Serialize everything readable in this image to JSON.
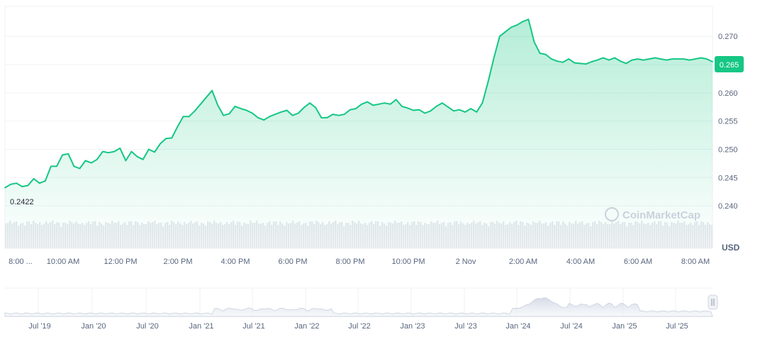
{
  "chart_data": {
    "type": "area",
    "currency_label": "USD",
    "watermark": "CoinMarketCap",
    "current_price": "0.265",
    "low_label": "0.2422",
    "ylim": [
      0.2375,
      0.2753
    ],
    "y_ticks": [
      "0.270",
      "0.265",
      "0.260",
      "0.255",
      "0.250",
      "0.245",
      "0.240"
    ],
    "x_ticks": [
      "8:00 ...",
      "10:00 AM",
      "12:00 PM",
      "2:00 PM",
      "4:00 PM",
      "6:00 PM",
      "8:00 PM",
      "10:00 PM",
      "2 Nov",
      "2:00 AM",
      "4:00 AM",
      "6:00 AM",
      "8:00 AM"
    ],
    "navigator_ticks": [
      "Jul '19",
      "Jan '20",
      "Jul '20",
      "Jan '21",
      "Jul '21",
      "Jan '22",
      "Jul '22",
      "Jan '23",
      "Jul '23",
      "Jan '24",
      "Jul '24",
      "Jan '25",
      "Jul '25"
    ],
    "series": [
      {
        "x": [
          0,
          0.2,
          0.4,
          0.6,
          0.8,
          1.0,
          1.2,
          1.4,
          1.6,
          1.8,
          2.0,
          2.2,
          2.4,
          2.6,
          2.8,
          3.0,
          3.2,
          3.4,
          3.6,
          3.8,
          4.0,
          4.2,
          4.4,
          4.6,
          4.8,
          5.0,
          5.2,
          5.4,
          5.6,
          5.8,
          6.0,
          6.2,
          6.4,
          6.6,
          6.8,
          7.0,
          7.2,
          7.4,
          7.6,
          7.8,
          8.0,
          8.2,
          8.4,
          8.6,
          8.8,
          9.0,
          9.2,
          9.4,
          9.6,
          9.8,
          10.0,
          10.2,
          10.4,
          10.6,
          10.8,
          11.0,
          11.2,
          11.4,
          11.6,
          11.8,
          12.0,
          12.2,
          12.4,
          12.6,
          12.8,
          13.0,
          13.2,
          13.4,
          13.6,
          13.8,
          14.0,
          14.2,
          14.4,
          14.6,
          14.8,
          15.0,
          15.2,
          15.4,
          15.6,
          15.8,
          16.0,
          16.2,
          16.4,
          16.6,
          16.8,
          17.0,
          17.2,
          17.4,
          17.6,
          17.8,
          18.0,
          18.2,
          18.4,
          18.6,
          18.8,
          19.0,
          19.2,
          19.4,
          19.6,
          19.8,
          20.0,
          20.2,
          20.4,
          20.6,
          20.8,
          21.0,
          21.2,
          21.4,
          21.6,
          21.8,
          22.0,
          22.2,
          22.4,
          22.6,
          22.8,
          23.0,
          23.2,
          23.4,
          23.6,
          23.8,
          24.0,
          24.2,
          24.4,
          24.6
        ],
        "values": [
          0.2432,
          0.2438,
          0.244,
          0.2434,
          0.2436,
          0.2448,
          0.244,
          0.2444,
          0.247,
          0.247,
          0.249,
          0.2492,
          0.247,
          0.2466,
          0.248,
          0.2476,
          0.2482,
          0.2496,
          0.2494,
          0.2496,
          0.2502,
          0.248,
          0.2496,
          0.2487,
          0.2482,
          0.25,
          0.2495,
          0.251,
          0.2519,
          0.252,
          0.254,
          0.2558,
          0.2558,
          0.2568,
          0.258,
          0.2592,
          0.2604,
          0.2578,
          0.256,
          0.2563,
          0.2576,
          0.2572,
          0.2569,
          0.2564,
          0.2556,
          0.2552,
          0.2558,
          0.2562,
          0.2566,
          0.2569,
          0.256,
          0.2564,
          0.2574,
          0.2582,
          0.2574,
          0.2556,
          0.2556,
          0.2562,
          0.256,
          0.2562,
          0.257,
          0.2572,
          0.258,
          0.2584,
          0.2578,
          0.258,
          0.2582,
          0.258,
          0.2588,
          0.2576,
          0.2573,
          0.2569,
          0.257,
          0.2564,
          0.2568,
          0.2576,
          0.2582,
          0.2575,
          0.2568,
          0.257,
          0.2566,
          0.2572,
          0.2566,
          0.2582,
          0.262,
          0.2662,
          0.27,
          0.2708,
          0.2716,
          0.272,
          0.2726,
          0.273,
          0.269,
          0.267,
          0.2668,
          0.266,
          0.2656,
          0.2654,
          0.266,
          0.2653,
          0.2652,
          0.2651,
          0.2655,
          0.2658,
          0.2662,
          0.2658,
          0.2662,
          0.2656,
          0.2652,
          0.2658,
          0.266,
          0.2658,
          0.266,
          0.2662,
          0.266,
          0.2658,
          0.266,
          0.266,
          0.266,
          0.2658,
          0.266,
          0.2662,
          0.266,
          0.2655
        ]
      }
    ],
    "colors": {
      "line": "#16c784",
      "badge": "#16c784",
      "grid": "#eff2f5",
      "volume": "#dfe3e8",
      "text": "#58667e"
    }
  }
}
